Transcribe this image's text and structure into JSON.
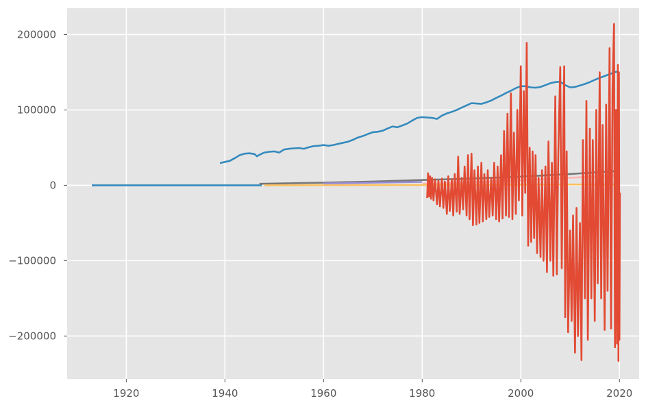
{
  "chart_data": {
    "type": "line",
    "title": "",
    "xlabel": "",
    "ylabel": "",
    "xlim": [
      1908,
      2024
    ],
    "ylim": [
      -257000,
      235000
    ],
    "grid": true,
    "legend": "none",
    "x_ticks": [
      1920,
      1940,
      1960,
      1980,
      2000,
      2020
    ],
    "x_tick_labels": [
      "1920",
      "1940",
      "1960",
      "1980",
      "2000",
      "2020"
    ],
    "y_ticks": [
      200000,
      100000,
      0,
      -100000,
      -200000
    ],
    "y_tick_labels": [
      "200000",
      "100000",
      "0",
      "−100000",
      "−200000"
    ],
    "colors": {
      "background": "#e5e5e5",
      "grid": "#ffffff",
      "red": "#e24a33",
      "blue": "#348abd",
      "gray": "#777777",
      "pink": "#ffb5b8",
      "yellow": "#fbc15e",
      "purple": "#988ed5"
    },
    "series": [
      {
        "color": "#348abd",
        "points": [
          [
            1913.0,
            0
          ],
          [
            1947.5,
            0
          ]
        ]
      },
      {
        "color": "#348abd",
        "points": [
          [
            1939.0,
            29500
          ],
          [
            1940.0,
            31000
          ],
          [
            1941.0,
            32500
          ],
          [
            1942.0,
            36000
          ],
          [
            1943.0,
            40000
          ],
          [
            1944.0,
            42000
          ],
          [
            1945.0,
            42500
          ],
          [
            1946.0,
            41500
          ],
          [
            1946.5,
            38500
          ],
          [
            1947.0,
            40500
          ],
          [
            1948.0,
            43500
          ],
          [
            1949.0,
            44500
          ],
          [
            1950.0,
            45000
          ],
          [
            1951.0,
            43500
          ],
          [
            1952.0,
            47500
          ],
          [
            1953.0,
            48500
          ],
          [
            1954.0,
            49000
          ],
          [
            1955.0,
            49500
          ],
          [
            1956.0,
            48500
          ],
          [
            1957.0,
            50500
          ],
          [
            1958.0,
            52000
          ],
          [
            1959.0,
            52500
          ],
          [
            1960.0,
            53500
          ],
          [
            1961.0,
            52500
          ],
          [
            1962.0,
            53500
          ],
          [
            1963.0,
            55000
          ],
          [
            1964.0,
            56500
          ],
          [
            1965.0,
            58000
          ],
          [
            1966.0,
            60500
          ],
          [
            1967.0,
            63500
          ],
          [
            1968.0,
            65500
          ],
          [
            1969.0,
            68000
          ],
          [
            1970.0,
            70500
          ],
          [
            1971.0,
            71000
          ],
          [
            1972.0,
            72500
          ],
          [
            1973.0,
            75500
          ],
          [
            1974.0,
            78000
          ],
          [
            1975.0,
            77000
          ],
          [
            1976.0,
            79500
          ],
          [
            1977.0,
            82000
          ],
          [
            1978.0,
            86000
          ],
          [
            1979.0,
            89500
          ],
          [
            1980.0,
            90500
          ],
          [
            1981.0,
            90000
          ],
          [
            1982.0,
            89500
          ],
          [
            1983.0,
            88000
          ],
          [
            1984.0,
            92500
          ],
          [
            1985.0,
            95500
          ],
          [
            1986.0,
            97500
          ],
          [
            1987.0,
            100000
          ],
          [
            1988.0,
            103000
          ],
          [
            1989.0,
            106000
          ],
          [
            1990.0,
            109000
          ],
          [
            1991.0,
            108500
          ],
          [
            1992.0,
            108000
          ],
          [
            1993.0,
            110000
          ],
          [
            1994.0,
            112500
          ],
          [
            1995.0,
            116000
          ],
          [
            1996.0,
            119000
          ],
          [
            1997.0,
            122500
          ],
          [
            1998.0,
            125500
          ],
          [
            1999.0,
            129000
          ],
          [
            2000.0,
            131500
          ],
          [
            2001.0,
            131500
          ],
          [
            2002.0,
            130000
          ],
          [
            2003.0,
            129500
          ],
          [
            2004.0,
            130500
          ],
          [
            2005.0,
            133000
          ],
          [
            2006.0,
            135500
          ],
          [
            2007.0,
            137000
          ],
          [
            2008.0,
            137500
          ],
          [
            2009.0,
            133000
          ],
          [
            2010.0,
            130000
          ],
          [
            2011.0,
            130500
          ],
          [
            2012.0,
            132500
          ],
          [
            2013.0,
            134500
          ],
          [
            2014.0,
            137000
          ],
          [
            2015.0,
            140000
          ],
          [
            2016.0,
            142500
          ],
          [
            2017.0,
            145000
          ],
          [
            2018.0,
            147500
          ],
          [
            2019.0,
            150000
          ],
          [
            2019.6,
            151000
          ]
        ]
      },
      {
        "color": "#777777",
        "points": [
          [
            1947.0,
            2000
          ],
          [
            1960.0,
            3500
          ],
          [
            1970.0,
            5000
          ],
          [
            1980.0,
            7000
          ],
          [
            1990.0,
            9000
          ],
          [
            2000.0,
            11500
          ],
          [
            2010.0,
            15000
          ],
          [
            2019.7,
            19000
          ]
        ]
      },
      {
        "color": "#ffb5b8",
        "points": [
          [
            1980.0,
            2000
          ],
          [
            1990.0,
            4000
          ],
          [
            2000.0,
            6500
          ],
          [
            2010.0,
            10000
          ],
          [
            2019.7,
            13000
          ]
        ]
      },
      {
        "color": "#988ed5",
        "points": [
          [
            1960.0,
            2500
          ],
          [
            1970.0,
            3500
          ],
          [
            1980.0,
            4500
          ]
        ]
      },
      {
        "color": "#fbc15e",
        "points": [
          [
            1948.0,
            0
          ],
          [
            1980.0,
            500
          ],
          [
            2000.0,
            1000
          ],
          [
            2019.7,
            1200
          ]
        ]
      },
      {
        "color": "#e24a33",
        "points": [
          [
            1981.0,
            -17000
          ],
          [
            1981.2,
            16000
          ],
          [
            1981.4,
            -15000
          ],
          [
            1981.6,
            12000
          ],
          [
            1981.8,
            -18000
          ],
          [
            1982.0,
            10000
          ],
          [
            1982.3,
            -20000
          ],
          [
            1982.6,
            8000
          ],
          [
            1983.0,
            -25000
          ],
          [
            1983.3,
            6000
          ],
          [
            1983.6,
            -28000
          ],
          [
            1984.0,
            9000
          ],
          [
            1984.3,
            -30000
          ],
          [
            1984.6,
            5000
          ],
          [
            1985.0,
            -38000
          ],
          [
            1985.3,
            12000
          ],
          [
            1985.6,
            -34000
          ],
          [
            1986.0,
            8000
          ],
          [
            1986.3,
            -40000
          ],
          [
            1986.6,
            15000
          ],
          [
            1987.0,
            -35000
          ],
          [
            1987.3,
            38000
          ],
          [
            1987.6,
            -38000
          ],
          [
            1988.0,
            10000
          ],
          [
            1988.3,
            -32000
          ],
          [
            1988.6,
            25000
          ],
          [
            1989.0,
            -40000
          ],
          [
            1989.3,
            40000
          ],
          [
            1989.6,
            -45000
          ],
          [
            1990.0,
            42000
          ],
          [
            1990.3,
            -53000
          ],
          [
            1990.6,
            20000
          ],
          [
            1991.0,
            -52000
          ],
          [
            1991.3,
            25000
          ],
          [
            1991.6,
            -50000
          ],
          [
            1992.0,
            30000
          ],
          [
            1992.3,
            -48000
          ],
          [
            1992.6,
            15000
          ],
          [
            1993.0,
            -45000
          ],
          [
            1993.3,
            20000
          ],
          [
            1993.6,
            -42000
          ],
          [
            1994.0,
            10000
          ],
          [
            1994.3,
            -40000
          ],
          [
            1994.6,
            30000
          ],
          [
            1995.0,
            -45000
          ],
          [
            1995.3,
            25000
          ],
          [
            1995.6,
            -48000
          ],
          [
            1996.0,
            40000
          ],
          [
            1996.3,
            -44000
          ],
          [
            1996.6,
            72000
          ],
          [
            1997.0,
            -40000
          ],
          [
            1997.3,
            95000
          ],
          [
            1997.6,
            -42000
          ],
          [
            1998.0,
            122000
          ],
          [
            1998.3,
            -45000
          ],
          [
            1998.6,
            70000
          ],
          [
            1999.0,
            -38000
          ],
          [
            1999.3,
            100000
          ],
          [
            1999.6,
            -20000
          ],
          [
            2000.0,
            158000
          ],
          [
            2000.3,
            -40000
          ],
          [
            2000.6,
            125000
          ],
          [
            2000.9,
            -10000
          ],
          [
            2001.2,
            189000
          ],
          [
            2001.5,
            -80000
          ],
          [
            2001.8,
            50000
          ],
          [
            2002.1,
            -75000
          ],
          [
            2002.4,
            45000
          ],
          [
            2002.7,
            -70000
          ],
          [
            2003.0,
            40000
          ],
          [
            2003.3,
            -90000
          ],
          [
            2003.6,
            10000
          ],
          [
            2004.0,
            -95000
          ],
          [
            2004.3,
            20000
          ],
          [
            2004.6,
            -100000
          ],
          [
            2005.0,
            25000
          ],
          [
            2005.3,
            -115000
          ],
          [
            2005.6,
            58000
          ],
          [
            2006.0,
            -100000
          ],
          [
            2006.3,
            30000
          ],
          [
            2006.6,
            -120000
          ],
          [
            2007.0,
            118000
          ],
          [
            2007.3,
            -118000
          ],
          [
            2007.6,
            40000
          ],
          [
            2008.0,
            157000
          ],
          [
            2008.3,
            -110000
          ],
          [
            2008.6,
            60000
          ],
          [
            2008.8,
            158000
          ],
          [
            2009.0,
            -175000
          ],
          [
            2009.3,
            45000
          ],
          [
            2009.6,
            -195000
          ],
          [
            2010.0,
            -60000
          ],
          [
            2010.3,
            -180000
          ],
          [
            2010.6,
            -40000
          ],
          [
            2011.0,
            -222000
          ],
          [
            2011.3,
            -30000
          ],
          [
            2011.6,
            -200000
          ],
          [
            2012.0,
            -50000
          ],
          [
            2012.3,
            -232000
          ],
          [
            2012.6,
            60000
          ],
          [
            2013.0,
            -150000
          ],
          [
            2013.3,
            112000
          ],
          [
            2013.6,
            -205000
          ],
          [
            2014.0,
            75000
          ],
          [
            2014.3,
            -150000
          ],
          [
            2014.6,
            60000
          ],
          [
            2015.0,
            -180000
          ],
          [
            2015.3,
            100000
          ],
          [
            2015.6,
            -130000
          ],
          [
            2016.0,
            150000
          ],
          [
            2016.3,
            -150000
          ],
          [
            2016.6,
            80000
          ],
          [
            2017.0,
            -192000
          ],
          [
            2017.3,
            107000
          ],
          [
            2017.6,
            -140000
          ],
          [
            2018.0,
            182000
          ],
          [
            2018.3,
            -190000
          ],
          [
            2018.6,
            125000
          ],
          [
            2018.9,
            214000
          ],
          [
            2019.1,
            -215000
          ],
          [
            2019.3,
            100000
          ],
          [
            2019.5,
            -210000
          ],
          [
            2019.7,
            160000
          ],
          [
            2019.8,
            -233000
          ],
          [
            2019.9,
            150000
          ],
          [
            2020.0,
            -205000
          ],
          [
            2020.1,
            -10000
          ]
        ]
      }
    ]
  }
}
